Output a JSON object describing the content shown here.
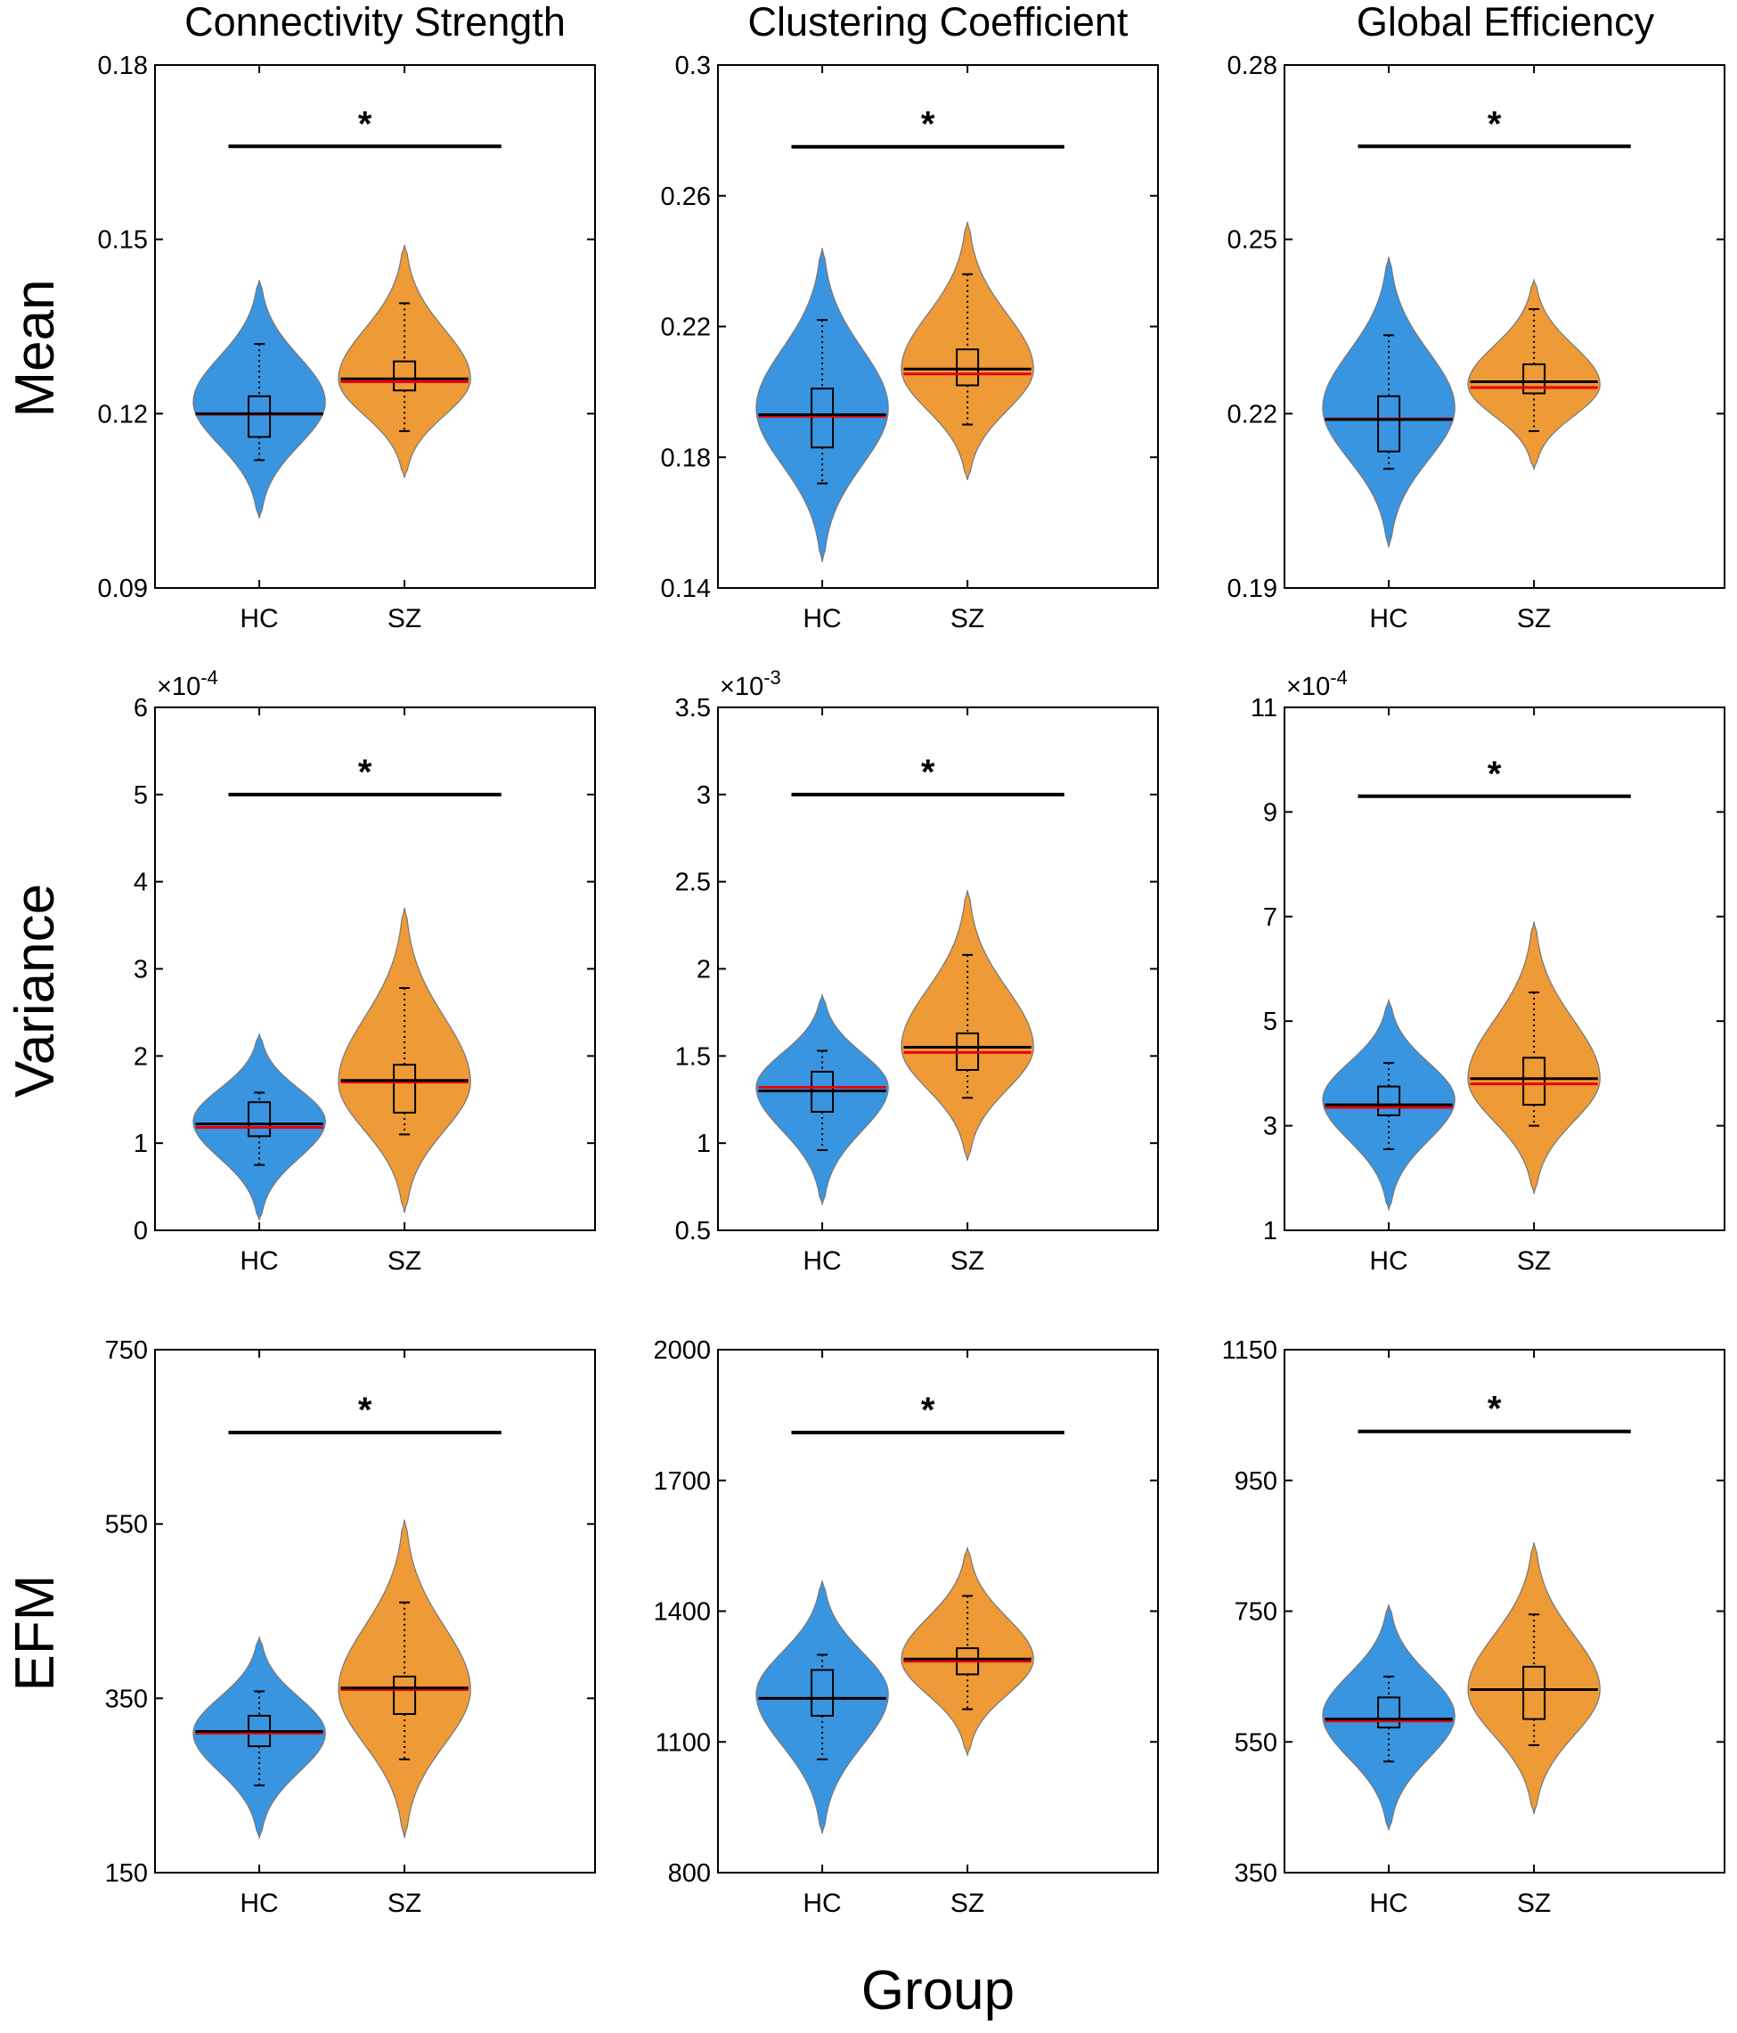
{
  "colors": {
    "hc_fill": "#3a95e0",
    "sz_fill": "#ee9a36",
    "violin_edge": "#777777",
    "median_line": "#000000",
    "mean_line": "#e8000b",
    "axis": "#000000"
  },
  "figure": {
    "column_titles": [
      "Connectivity Strength",
      "Clustering Coefficient",
      "Global Efficiency"
    ],
    "row_labels": [
      "Mean",
      "Variance",
      "EFM"
    ],
    "xlabel": "Group"
  },
  "chart_data": [
    {
      "type": "violin",
      "row": 0,
      "col": 0,
      "metric": "Mean",
      "measure": "Connectivity Strength",
      "ylim": [
        0.09,
        0.18
      ],
      "yticks": [
        0.09,
        0.12,
        0.15,
        0.18
      ],
      "ytick_labels": [
        "0.09",
        "0.12",
        "0.15",
        "0.18"
      ],
      "exponent": "",
      "categories": [
        "HC",
        "SZ"
      ],
      "significance": "*",
      "sig_y": 0.166,
      "groups": [
        {
          "name": "HC",
          "min": 0.102,
          "max": 0.143,
          "mode": 0.122,
          "median": 0.12,
          "mean": 0.1199,
          "q1": 0.116,
          "q3": 0.123,
          "whisker_low": 0.112,
          "whisker_high": 0.132
        },
        {
          "name": "SZ",
          "min": 0.109,
          "max": 0.149,
          "mode": 0.126,
          "median": 0.126,
          "mean": 0.1255,
          "q1": 0.124,
          "q3": 0.129,
          "whisker_low": 0.117,
          "whisker_high": 0.139
        }
      ]
    },
    {
      "type": "violin",
      "row": 0,
      "col": 1,
      "metric": "Mean",
      "measure": "Clustering Coefficient",
      "ylim": [
        0.14,
        0.3
      ],
      "yticks": [
        0.14,
        0.18,
        0.22,
        0.26,
        0.3
      ],
      "ytick_labels": [
        "0.14",
        "0.18",
        "0.22",
        "0.26",
        "0.3"
      ],
      "exponent": "",
      "categories": [
        "HC",
        "SZ"
      ],
      "significance": "*",
      "sig_y": 0.275,
      "groups": [
        {
          "name": "HC",
          "min": 0.148,
          "max": 0.244,
          "mode": 0.195,
          "median": 0.193,
          "mean": 0.1925,
          "q1": 0.183,
          "q3": 0.201,
          "whisker_low": 0.172,
          "whisker_high": 0.222
        },
        {
          "name": "SZ",
          "min": 0.173,
          "max": 0.252,
          "mode": 0.207,
          "median": 0.207,
          "mean": 0.2055,
          "q1": 0.202,
          "q3": 0.213,
          "whisker_low": 0.19,
          "whisker_high": 0.236
        }
      ]
    },
    {
      "type": "violin",
      "row": 0,
      "col": 2,
      "metric": "Mean",
      "measure": "Global Efficiency",
      "ylim": [
        0.19,
        0.28
      ],
      "yticks": [
        0.19,
        0.22,
        0.25,
        0.28
      ],
      "ytick_labels": [
        "0.19",
        "0.22",
        "0.25",
        "0.28"
      ],
      "exponent": "",
      "categories": [
        "HC",
        "SZ"
      ],
      "significance": "*",
      "sig_y": 0.266,
      "groups": [
        {
          "name": "HC",
          "min": 0.197,
          "max": 0.247,
          "mode": 0.221,
          "median": 0.219,
          "mean": 0.2191,
          "q1": 0.2135,
          "q3": 0.223,
          "whisker_low": 0.2105,
          "whisker_high": 0.2335
        },
        {
          "name": "SZ",
          "min": 0.2105,
          "max": 0.243,
          "mode": 0.225,
          "median": 0.2255,
          "mean": 0.2245,
          "q1": 0.2235,
          "q3": 0.2285,
          "whisker_low": 0.217,
          "whisker_high": 0.238
        }
      ]
    },
    {
      "type": "violin",
      "row": 1,
      "col": 0,
      "metric": "Variance",
      "measure": "Connectivity Strength",
      "ylim": [
        0,
        6
      ],
      "yticks": [
        0,
        1,
        2,
        3,
        4,
        5,
        6
      ],
      "ytick_labels": [
        "0",
        "1",
        "2",
        "3",
        "4",
        "5",
        "6"
      ],
      "exponent": "-4",
      "categories": [
        "HC",
        "SZ"
      ],
      "significance": "*",
      "sig_y": 5.0,
      "groups": [
        {
          "name": "HC",
          "min": 0.12,
          "max": 2.25,
          "mode": 1.25,
          "median": 1.22,
          "mean": 1.18,
          "q1": 1.08,
          "q3": 1.47,
          "whisker_low": 0.75,
          "whisker_high": 1.58
        },
        {
          "name": "SZ",
          "min": 0.2,
          "max": 3.7,
          "mode": 1.7,
          "median": 1.72,
          "mean": 1.7,
          "q1": 1.35,
          "q3": 1.9,
          "whisker_low": 1.1,
          "whisker_high": 2.78
        }
      ]
    },
    {
      "type": "violin",
      "row": 1,
      "col": 1,
      "metric": "Variance",
      "measure": "Clustering Coefficient",
      "ylim": [
        0.5,
        3.5
      ],
      "yticks": [
        0.5,
        1,
        1.5,
        2,
        2.5,
        3,
        3.5
      ],
      "ytick_labels": [
        "0.5",
        "1",
        "1.5",
        "2",
        "2.5",
        "3",
        "3.5"
      ],
      "exponent": "-3",
      "categories": [
        "HC",
        "SZ"
      ],
      "significance": "*",
      "sig_y": 3.0,
      "groups": [
        {
          "name": "HC",
          "min": 0.65,
          "max": 1.85,
          "mode": 1.32,
          "median": 1.3,
          "mean": 1.32,
          "q1": 1.18,
          "q3": 1.41,
          "whisker_low": 0.96,
          "whisker_high": 1.53
        },
        {
          "name": "SZ",
          "min": 0.9,
          "max": 2.45,
          "mode": 1.55,
          "median": 1.55,
          "mean": 1.52,
          "q1": 1.42,
          "q3": 1.63,
          "whisker_low": 1.26,
          "whisker_high": 2.08
        }
      ]
    },
    {
      "type": "violin",
      "row": 1,
      "col": 2,
      "metric": "Variance",
      "measure": "Global Efficiency",
      "ylim": [
        1,
        11
      ],
      "yticks": [
        1,
        3,
        5,
        7,
        9,
        11
      ],
      "ytick_labels": [
        "1",
        "3",
        "5",
        "7",
        "9",
        "11"
      ],
      "exponent": "-4",
      "categories": [
        "HC",
        "SZ"
      ],
      "significance": "*",
      "sig_y": 9.3,
      "groups": [
        {
          "name": "HC",
          "min": 1.4,
          "max": 5.4,
          "mode": 3.5,
          "median": 3.4,
          "mean": 3.35,
          "q1": 3.2,
          "q3": 3.75,
          "whisker_low": 2.55,
          "whisker_high": 4.2
        },
        {
          "name": "SZ",
          "min": 1.7,
          "max": 6.9,
          "mode": 3.9,
          "median": 3.9,
          "mean": 3.8,
          "q1": 3.4,
          "q3": 4.3,
          "whisker_low": 3.0,
          "whisker_high": 5.55
        }
      ]
    },
    {
      "type": "violin",
      "row": 2,
      "col": 0,
      "metric": "EFM",
      "measure": "Connectivity Strength",
      "ylim": [
        150,
        750
      ],
      "yticks": [
        150,
        350,
        550,
        750
      ],
      "ytick_labels": [
        "150",
        "350",
        "550",
        "750"
      ],
      "exponent": "",
      "categories": [
        "HC",
        "SZ"
      ],
      "significance": "*",
      "sig_y": 655,
      "groups": [
        {
          "name": "HC",
          "min": 190,
          "max": 420,
          "mode": 310,
          "median": 312,
          "mean": 310,
          "q1": 295,
          "q3": 330,
          "whisker_low": 250,
          "whisker_high": 358
        },
        {
          "name": "SZ",
          "min": 190,
          "max": 555,
          "mode": 360,
          "median": 362,
          "mean": 360,
          "q1": 332,
          "q3": 375,
          "whisker_low": 280,
          "whisker_high": 460
        }
      ]
    },
    {
      "type": "violin",
      "row": 2,
      "col": 1,
      "metric": "EFM",
      "measure": "Clustering Coefficient",
      "ylim": [
        800,
        2000
      ],
      "yticks": [
        800,
        1100,
        1400,
        1700,
        2000
      ],
      "ytick_labels": [
        "800",
        "1100",
        "1400",
        "1700",
        "2000"
      ],
      "exponent": "",
      "categories": [
        "HC",
        "SZ"
      ],
      "significance": "*",
      "sig_y": 1810,
      "groups": [
        {
          "name": "HC",
          "min": 890,
          "max": 1470,
          "mode": 1210,
          "median": 1200,
          "mean": 1200,
          "q1": 1160,
          "q3": 1265,
          "whisker_low": 1060,
          "whisker_high": 1300
        },
        {
          "name": "SZ",
          "min": 1070,
          "max": 1545,
          "mode": 1290,
          "median": 1290,
          "mean": 1285,
          "q1": 1255,
          "q3": 1315,
          "whisker_low": 1175,
          "whisker_high": 1435
        }
      ]
    },
    {
      "type": "violin",
      "row": 2,
      "col": 2,
      "metric": "EFM",
      "measure": "Global Efficiency",
      "ylim": [
        350,
        1150
      ],
      "yticks": [
        350,
        550,
        750,
        950,
        1150
      ],
      "ytick_labels": [
        "350",
        "550",
        "750",
        "950",
        "1150"
      ],
      "exponent": "",
      "categories": [
        "HC",
        "SZ"
      ],
      "significance": "*",
      "sig_y": 1025,
      "groups": [
        {
          "name": "HC",
          "min": 415,
          "max": 760,
          "mode": 590,
          "median": 585,
          "mean": 582,
          "q1": 572,
          "q3": 618,
          "whisker_low": 520,
          "whisker_high": 650
        },
        {
          "name": "SZ",
          "min": 440,
          "max": 855,
          "mode": 630,
          "median": 630,
          "mean": 630,
          "q1": 585,
          "q3": 665,
          "whisker_low": 545,
          "whisker_high": 745
        }
      ]
    }
  ]
}
